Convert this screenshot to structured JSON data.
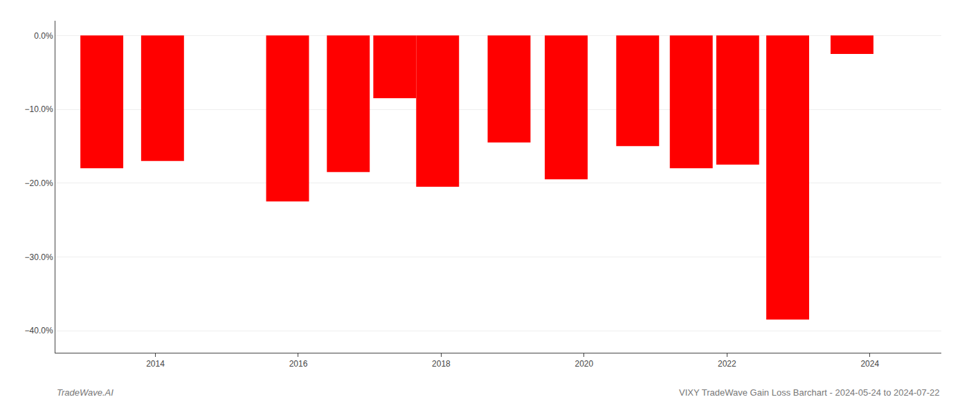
{
  "chart_data": {
    "type": "bar",
    "x": [
      2013.25,
      2014.1,
      2015.85,
      2016.7,
      2017.35,
      2017.95,
      2018.95,
      2019.75,
      2020.75,
      2021.5,
      2022.15,
      2022.85,
      2023.75
    ],
    "values": [
      -18.0,
      -17.0,
      -22.5,
      -18.5,
      -8.5,
      -20.5,
      -14.5,
      -19.5,
      -15.0,
      -18.0,
      -17.5,
      -38.5,
      -2.5
    ],
    "color": "#ff0000",
    "xlim": [
      2012.6,
      2025.0
    ],
    "xticks": [
      2014,
      2016,
      2018,
      2020,
      2022,
      2024
    ],
    "ylim": [
      -43,
      2.0
    ],
    "yticks": [
      {
        "value": 0.0,
        "label": "0.0%"
      },
      {
        "value": -10.0,
        "label": "−10.0%"
      },
      {
        "value": -20.0,
        "label": "−20.0%"
      },
      {
        "value": -30.0,
        "label": "−30.0%"
      },
      {
        "value": -40.0,
        "label": "−40.0%"
      }
    ],
    "grid": true,
    "annotations": [
      "TradeWave.AI",
      "VIXY TradeWave Gain Loss Barchart - 2024-05-24 to 2024-07-22"
    ]
  }
}
